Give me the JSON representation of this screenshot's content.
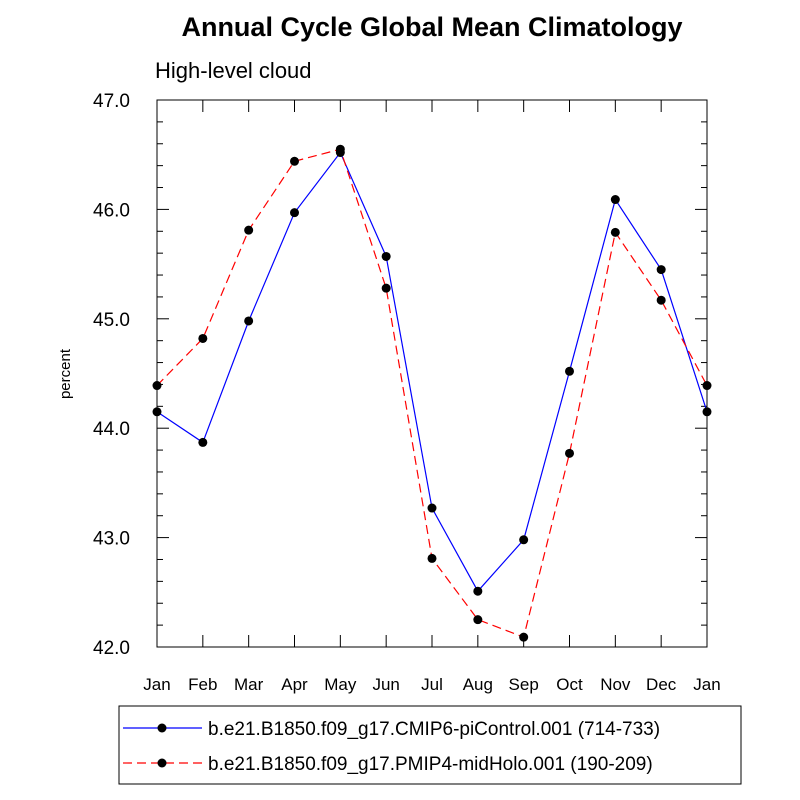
{
  "chart_data": {
    "type": "line",
    "title": "Annual Cycle Global Mean Climatology",
    "subtitle": "High-level cloud",
    "xlabel": "",
    "ylabel": "percent",
    "categories": [
      "Jan",
      "Feb",
      "Mar",
      "Apr",
      "May",
      "Jun",
      "Jul",
      "Aug",
      "Sep",
      "Oct",
      "Nov",
      "Dec",
      "Jan"
    ],
    "ylim": [
      42.0,
      47.0
    ],
    "yticks": [
      42.0,
      43.0,
      44.0,
      45.0,
      46.0,
      47.0
    ],
    "ytick_labels": [
      "42.0",
      "43.0",
      "44.0",
      "45.0",
      "46.0",
      "47.0"
    ],
    "grid": false,
    "legend_position": "bottom",
    "series": [
      {
        "name": "b.e21.B1850.f09_g17.CMIP6-piControl.001 (714-733)",
        "color": "#0000ff",
        "line_style": "solid",
        "marker": "filled-circle",
        "values": [
          44.15,
          43.87,
          44.98,
          45.97,
          46.52,
          45.57,
          43.27,
          42.51,
          42.98,
          44.52,
          46.09,
          45.45,
          44.15
        ]
      },
      {
        "name": "b.e21.B1850.f09_g17.PMIP4-midHolo.001 (190-209)",
        "color": "#ff0000",
        "line_style": "dashed",
        "marker": "filled-circle",
        "values": [
          44.39,
          44.82,
          45.81,
          46.44,
          46.55,
          45.28,
          42.81,
          42.25,
          42.09,
          43.77,
          45.79,
          45.17,
          44.39
        ]
      }
    ]
  }
}
